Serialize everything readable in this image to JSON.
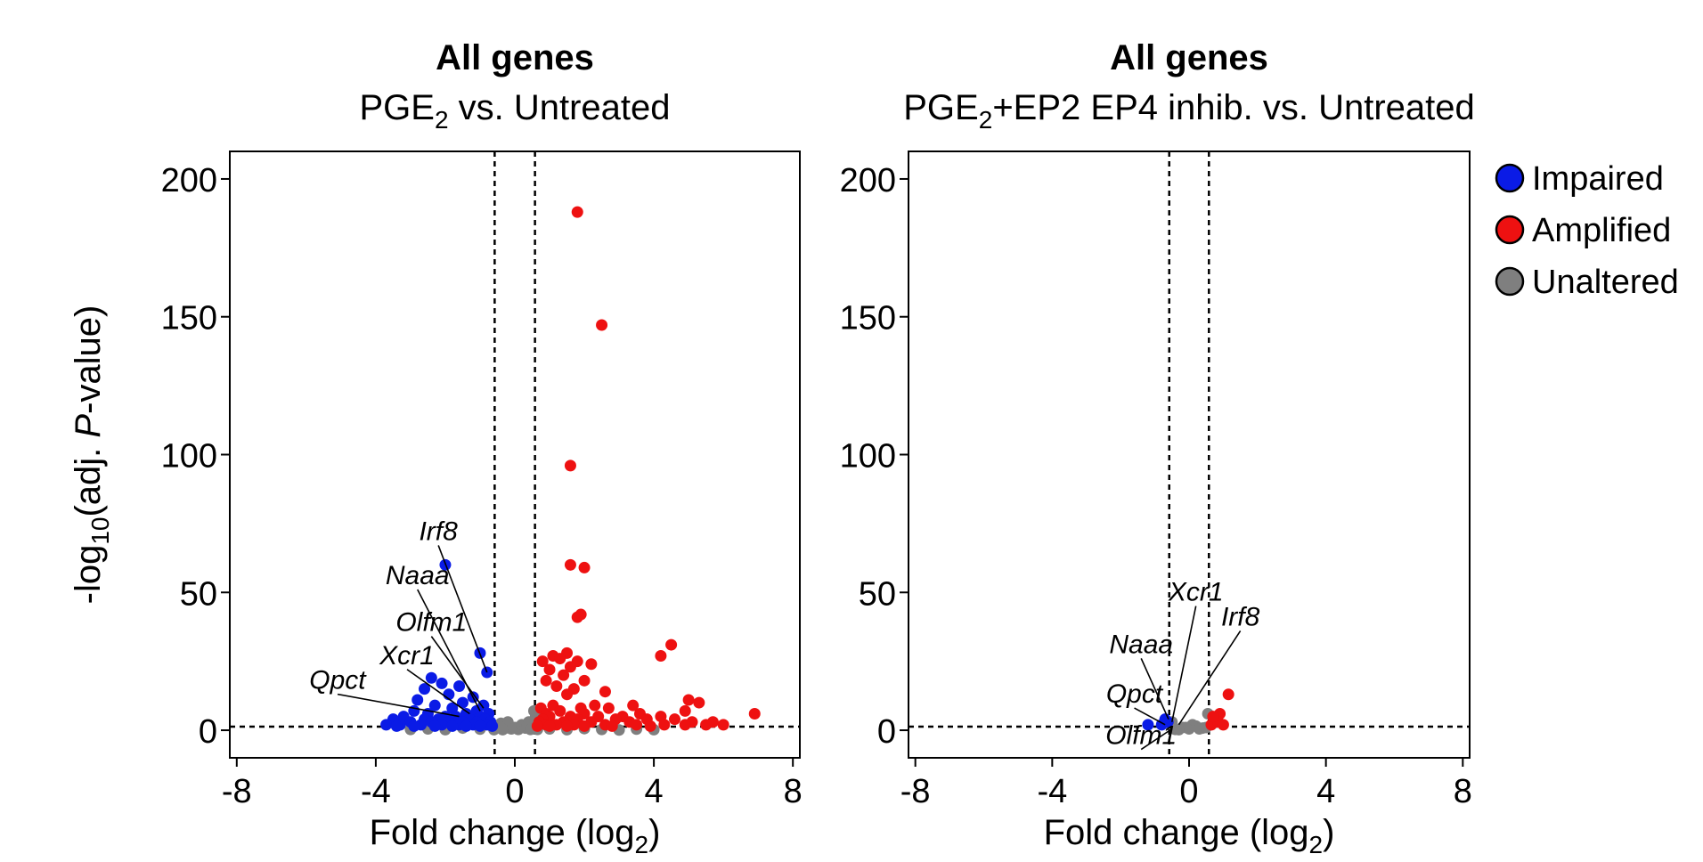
{
  "chart_data": [
    {
      "type": "scatter",
      "id": "left",
      "title": "All genes",
      "subtitle_parts": [
        "PGE",
        "2",
        " vs. Untreated"
      ],
      "xlabel_parts": [
        "Fold change (log",
        "2",
        ")"
      ],
      "ylabel_parts": [
        "-log",
        "10",
        "(adj. ",
        "P",
        "-value)"
      ],
      "xlim": [
        -8.2,
        8.2
      ],
      "ylim": [
        -10,
        210
      ],
      "xticks": [
        -8,
        -4,
        0,
        4,
        8
      ],
      "yticks": [
        0,
        50,
        100,
        150,
        200
      ],
      "vlines": [
        -0.58,
        0.58
      ],
      "hline": 1.3,
      "series": [
        {
          "name": "Impaired",
          "color": "#0a1be6",
          "points": [
            [
              -2.0,
              60
            ],
            [
              -1.0,
              28
            ],
            [
              -0.8,
              21
            ],
            [
              -2.4,
              19
            ],
            [
              -1.6,
              16
            ],
            [
              -2.1,
              17
            ],
            [
              -2.6,
              15
            ],
            [
              -1.9,
              13
            ],
            [
              -1.2,
              12
            ],
            [
              -2.8,
              11
            ],
            [
              -1.5,
              10
            ],
            [
              -2.3,
              9
            ],
            [
              -0.9,
              9
            ],
            [
              -1.8,
              8
            ],
            [
              -2.9,
              7
            ],
            [
              -1.1,
              7
            ],
            [
              -2.5,
              6
            ],
            [
              -1.4,
              6
            ],
            [
              -0.75,
              6
            ],
            [
              -3.2,
              5
            ],
            [
              -2.0,
              5
            ],
            [
              -1.7,
              5
            ],
            [
              -1.0,
              5
            ],
            [
              -3.5,
              4
            ],
            [
              -2.6,
              4
            ],
            [
              -2.2,
              4
            ],
            [
              -1.3,
              4
            ],
            [
              -0.85,
              4
            ],
            [
              -3.0,
              3
            ],
            [
              -2.4,
              3
            ],
            [
              -1.9,
              3
            ],
            [
              -1.5,
              3
            ],
            [
              -1.1,
              3
            ],
            [
              -0.7,
              3
            ],
            [
              -3.7,
              2
            ],
            [
              -3.3,
              2
            ],
            [
              -2.7,
              2
            ],
            [
              -2.1,
              2
            ],
            [
              -1.6,
              2
            ],
            [
              -1.2,
              2
            ],
            [
              -0.8,
              2
            ],
            [
              -3.4,
              1.5
            ],
            [
              -2.9,
              1.5
            ],
            [
              -2.3,
              1.5
            ],
            [
              -1.8,
              1.5
            ],
            [
              -1.4,
              1.5
            ],
            [
              -1.0,
              1.5
            ],
            [
              -0.65,
              1.5
            ]
          ]
        },
        {
          "name": "Amplified",
          "color": "#ee1111",
          "points": [
            [
              1.8,
              188
            ],
            [
              2.5,
              147
            ],
            [
              1.6,
              96
            ],
            [
              1.6,
              60
            ],
            [
              2.0,
              59
            ],
            [
              1.9,
              42
            ],
            [
              1.8,
              41
            ],
            [
              4.5,
              31
            ],
            [
              4.2,
              27
            ],
            [
              1.5,
              28
            ],
            [
              1.1,
              27
            ],
            [
              1.3,
              26
            ],
            [
              0.8,
              25
            ],
            [
              1.8,
              25
            ],
            [
              2.2,
              24
            ],
            [
              1.6,
              23
            ],
            [
              1.0,
              22
            ],
            [
              1.4,
              20
            ],
            [
              2.0,
              18
            ],
            [
              0.9,
              18
            ],
            [
              1.2,
              16
            ],
            [
              1.7,
              15
            ],
            [
              2.6,
              14
            ],
            [
              1.5,
              13
            ],
            [
              5.0,
              11
            ],
            [
              5.3,
              10
            ],
            [
              3.4,
              9
            ],
            [
              2.3,
              9
            ],
            [
              1.1,
              9
            ],
            [
              0.75,
              8
            ],
            [
              1.9,
              8
            ],
            [
              2.7,
              8
            ],
            [
              4.9,
              7
            ],
            [
              1.3,
              7
            ],
            [
              0.9,
              6
            ],
            [
              2.0,
              6
            ],
            [
              3.6,
              6
            ],
            [
              6.9,
              6
            ],
            [
              1.6,
              5
            ],
            [
              2.4,
              5
            ],
            [
              3.1,
              5
            ],
            [
              4.2,
              5
            ],
            [
              1.0,
              5
            ],
            [
              1.8,
              4
            ],
            [
              2.9,
              4
            ],
            [
              3.8,
              4
            ],
            [
              4.6,
              4
            ],
            [
              0.8,
              4
            ],
            [
              1.4,
              3
            ],
            [
              2.2,
              3
            ],
            [
              3.3,
              3
            ],
            [
              5.1,
              3
            ],
            [
              5.7,
              3
            ],
            [
              0.7,
              3
            ],
            [
              1.2,
              2
            ],
            [
              2.6,
              2
            ],
            [
              3.5,
              2
            ],
            [
              4.3,
              2
            ],
            [
              5.5,
              2
            ],
            [
              0.9,
              2
            ],
            [
              1.7,
              2
            ],
            [
              4.9,
              2
            ],
            [
              2.8,
              1.5
            ],
            [
              3.9,
              1.5
            ],
            [
              6.0,
              2
            ],
            [
              1.5,
              1.5
            ],
            [
              0.65,
              1.5
            ],
            [
              2.0,
              1.5
            ],
            [
              1.0,
              1.5
            ]
          ]
        },
        {
          "name": "Unaltered",
          "color": "#7f7f7f",
          "points": [
            [
              -3.0,
              0.3
            ],
            [
              -2.5,
              0.5
            ],
            [
              -2.0,
              0.2
            ],
            [
              -1.5,
              0.8
            ],
            [
              -1.0,
              0.4
            ],
            [
              -0.5,
              1.0
            ],
            [
              -0.4,
              2.5
            ],
            [
              -0.3,
              0.6
            ],
            [
              -0.2,
              3.0
            ],
            [
              -0.1,
              0.5
            ],
            [
              0.0,
              1.0
            ],
            [
              0.1,
              0.3
            ],
            [
              0.2,
              2.0
            ],
            [
              0.3,
              0.8
            ],
            [
              0.4,
              3.0
            ],
            [
              0.5,
              1.2
            ],
            [
              0.6,
              5.0
            ],
            [
              0.55,
              7.0
            ],
            [
              1.0,
              0.5
            ],
            [
              1.5,
              0.2
            ],
            [
              2.0,
              0.6
            ],
            [
              2.5,
              0.3
            ],
            [
              3.0,
              0.1
            ],
            [
              3.5,
              0.4
            ],
            [
              4.0,
              0.2
            ],
            [
              -0.45,
              1.5
            ],
            [
              -0.35,
              0.2
            ],
            [
              0.35,
              1.6
            ],
            [
              0.45,
              0.3
            ],
            [
              -0.6,
              0.2
            ],
            [
              0.65,
              0.3
            ]
          ]
        }
      ],
      "annotations": [
        {
          "label": "Irf8",
          "x": -2.2,
          "y": 69,
          "tx": -0.8,
          "ty": 21
        },
        {
          "label": "Naaa",
          "x": -2.8,
          "y": 53,
          "tx": -1.0,
          "ty": 7
        },
        {
          "label": "Olfm1",
          "x": -2.4,
          "y": 36,
          "tx": -0.9,
          "ty": 8
        },
        {
          "label": "Xcr1",
          "x": -3.1,
          "y": 24,
          "tx": -1.3,
          "ty": 6
        },
        {
          "label": "Qpct",
          "x": -5.1,
          "y": 15,
          "tx": -1.6,
          "ty": 5
        }
      ]
    },
    {
      "type": "scatter",
      "id": "right",
      "title": "All genes",
      "subtitle_parts": [
        "PGE",
        "2",
        "+EP2 EP4 inhib. vs. Untreated"
      ],
      "xlabel_parts": [
        "Fold change (log",
        "2",
        ")"
      ],
      "ylabel_parts": [],
      "xlim": [
        -8.2,
        8.2
      ],
      "ylim": [
        -10,
        210
      ],
      "xticks": [
        -8,
        -4,
        0,
        4,
        8
      ],
      "yticks": [
        0,
        50,
        100,
        150,
        200
      ],
      "vlines": [
        -0.58,
        0.58
      ],
      "hline": 1.3,
      "series": [
        {
          "name": "Impaired",
          "color": "#0a1be6",
          "points": [
            [
              -0.7,
              4
            ],
            [
              -1.2,
              2
            ],
            [
              -0.62,
              3
            ],
            [
              -0.8,
              2
            ]
          ]
        },
        {
          "name": "Amplified",
          "color": "#ee1111",
          "points": [
            [
              1.15,
              13
            ],
            [
              0.9,
              6
            ],
            [
              0.75,
              4
            ],
            [
              0.65,
              2
            ],
            [
              0.85,
              3
            ],
            [
              1.0,
              2
            ],
            [
              0.7,
              5
            ]
          ]
        },
        {
          "name": "Unaltered",
          "color": "#7f7f7f",
          "points": [
            [
              0.0,
              0.5
            ],
            [
              -0.2,
              1.0
            ],
            [
              0.2,
              1.5
            ],
            [
              -0.4,
              0.3
            ],
            [
              0.4,
              0.8
            ],
            [
              0.55,
              6
            ],
            [
              -0.5,
              3
            ],
            [
              0.1,
              2
            ],
            [
              -0.1,
              1
            ],
            [
              0.3,
              0.5
            ],
            [
              -0.3,
              0.2
            ],
            [
              0.5,
              1.0
            ]
          ]
        }
      ],
      "annotations": [
        {
          "label": "Xcr1",
          "x": 0.2,
          "y": 47,
          "tx": -0.5,
          "ty": 3
        },
        {
          "label": "Irf8",
          "x": 1.5,
          "y": 38,
          "tx": -0.3,
          "ty": 2
        },
        {
          "label": "Naaa",
          "x": -1.4,
          "y": 28,
          "tx": -0.6,
          "ty": 4
        },
        {
          "label": "Qpct",
          "x": -1.6,
          "y": 10,
          "tx": -0.7,
          "ty": 2
        },
        {
          "label": "Olfm1",
          "x": -1.4,
          "y": -5,
          "tx": -0.5,
          "ty": 0.5
        }
      ]
    }
  ],
  "legend": {
    "items": [
      {
        "label": "Impaired",
        "color": "#0a1be6"
      },
      {
        "label": "Amplified",
        "color": "#ee1111"
      },
      {
        "label": "Unaltered",
        "color": "#7f7f7f"
      }
    ]
  }
}
